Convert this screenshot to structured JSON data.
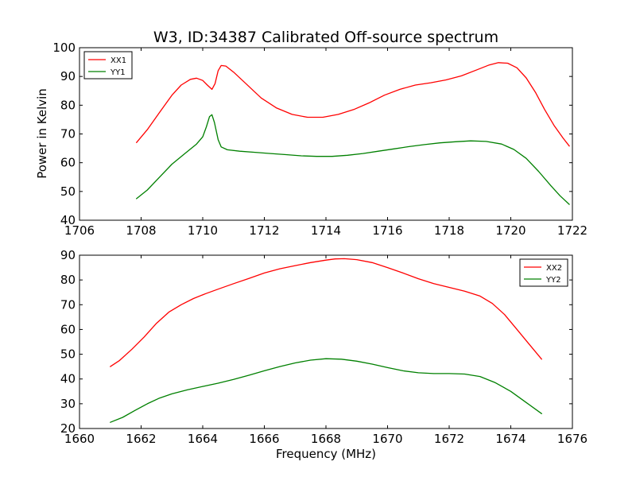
{
  "figure": {
    "title": "W3, ID:34387 Calibrated Off-source spectrum",
    "xlabel": "Frequency (MHz)",
    "ylabel": "Power in Kelvin"
  },
  "colors": {
    "red": "#ff0000",
    "green": "#008000"
  },
  "chart_data": [
    {
      "type": "line",
      "title": "W3, ID:34387 Calibrated Off-source spectrum",
      "xlabel": "",
      "ylabel": "Power in Kelvin",
      "xlim": [
        1706,
        1722
      ],
      "ylim": [
        40,
        100
      ],
      "xticks": [
        1706,
        1708,
        1710,
        1712,
        1714,
        1716,
        1718,
        1720,
        1722
      ],
      "yticks": [
        40,
        50,
        60,
        70,
        80,
        90,
        100
      ],
      "grid": false,
      "legend_position": "top-left",
      "series": [
        {
          "name": "XX1",
          "color": "#ff0000",
          "points": [
            [
              1707.85,
              67
            ],
            [
              1708.2,
              71.5
            ],
            [
              1708.6,
              77.5
            ],
            [
              1709.0,
              83.5
            ],
            [
              1709.3,
              87
            ],
            [
              1709.6,
              89
            ],
            [
              1709.8,
              89.4
            ],
            [
              1710.0,
              88.6
            ],
            [
              1710.15,
              87
            ],
            [
              1710.3,
              85.5
            ],
            [
              1710.4,
              87.5
            ],
            [
              1710.5,
              92
            ],
            [
              1710.6,
              93.8
            ],
            [
              1710.75,
              93.6
            ],
            [
              1711.0,
              91.5
            ],
            [
              1711.4,
              87.5
            ],
            [
              1711.9,
              82.5
            ],
            [
              1712.4,
              79
            ],
            [
              1712.9,
              76.8
            ],
            [
              1713.4,
              75.8
            ],
            [
              1713.9,
              75.8
            ],
            [
              1714.4,
              76.8
            ],
            [
              1714.9,
              78.5
            ],
            [
              1715.4,
              80.8
            ],
            [
              1715.9,
              83.5
            ],
            [
              1716.4,
              85.5
            ],
            [
              1716.9,
              87
            ],
            [
              1717.4,
              87.8
            ],
            [
              1717.9,
              88.8
            ],
            [
              1718.4,
              90.2
            ],
            [
              1718.9,
              92.3
            ],
            [
              1719.3,
              94
            ],
            [
              1719.6,
              94.8
            ],
            [
              1719.9,
              94.6
            ],
            [
              1720.2,
              93
            ],
            [
              1720.5,
              89.5
            ],
            [
              1720.8,
              84.5
            ],
            [
              1721.1,
              78.5
            ],
            [
              1721.4,
              73
            ],
            [
              1721.7,
              68.5
            ],
            [
              1721.9,
              65.8
            ]
          ]
        },
        {
          "name": "YY1",
          "color": "#008000",
          "points": [
            [
              1707.85,
              47.5
            ],
            [
              1708.2,
              50.5
            ],
            [
              1708.6,
              55
            ],
            [
              1709.0,
              59.5
            ],
            [
              1709.4,
              63
            ],
            [
              1709.8,
              66.5
            ],
            [
              1710.0,
              69
            ],
            [
              1710.12,
              72.5
            ],
            [
              1710.22,
              76
            ],
            [
              1710.3,
              76.7
            ],
            [
              1710.38,
              74
            ],
            [
              1710.5,
              68
            ],
            [
              1710.6,
              65.5
            ],
            [
              1710.8,
              64.5
            ],
            [
              1711.2,
              64
            ],
            [
              1711.7,
              63.6
            ],
            [
              1712.2,
              63.2
            ],
            [
              1712.7,
              62.8
            ],
            [
              1713.2,
              62.4
            ],
            [
              1713.7,
              62.2
            ],
            [
              1714.2,
              62.2
            ],
            [
              1714.7,
              62.6
            ],
            [
              1715.2,
              63.2
            ],
            [
              1715.7,
              64
            ],
            [
              1716.2,
              64.8
            ],
            [
              1716.7,
              65.6
            ],
            [
              1717.2,
              66.3
            ],
            [
              1717.7,
              66.9
            ],
            [
              1718.2,
              67.3
            ],
            [
              1718.7,
              67.6
            ],
            [
              1719.2,
              67.4
            ],
            [
              1719.7,
              66.5
            ],
            [
              1720.1,
              64.6
            ],
            [
              1720.5,
              61.5
            ],
            [
              1720.9,
              57
            ],
            [
              1721.3,
              52
            ],
            [
              1721.6,
              48.5
            ],
            [
              1721.9,
              45.5
            ]
          ]
        }
      ]
    },
    {
      "type": "line",
      "title": "",
      "xlabel": "Frequency (MHz)",
      "ylabel": "",
      "xlim": [
        1660,
        1676
      ],
      "ylim": [
        20,
        90
      ],
      "xticks": [
        1660,
        1662,
        1664,
        1666,
        1668,
        1670,
        1672,
        1674,
        1676
      ],
      "yticks": [
        20,
        30,
        40,
        50,
        60,
        70,
        80,
        90
      ],
      "grid": false,
      "legend_position": "top-right",
      "series": [
        {
          "name": "XX2",
          "color": "#ff0000",
          "points": [
            [
              1661.0,
              45
            ],
            [
              1661.3,
              47.5
            ],
            [
              1661.7,
              52
            ],
            [
              1662.1,
              57
            ],
            [
              1662.5,
              62.5
            ],
            [
              1662.9,
              67
            ],
            [
              1663.3,
              70
            ],
            [
              1663.7,
              72.5
            ],
            [
              1664.1,
              74.5
            ],
            [
              1664.5,
              76.3
            ],
            [
              1665.0,
              78.5
            ],
            [
              1665.5,
              80.6
            ],
            [
              1666.0,
              82.8
            ],
            [
              1666.5,
              84.5
            ],
            [
              1667.0,
              85.8
            ],
            [
              1667.5,
              87
            ],
            [
              1668.0,
              88
            ],
            [
              1668.3,
              88.5
            ],
            [
              1668.6,
              88.6
            ],
            [
              1669.0,
              88.2
            ],
            [
              1669.5,
              87
            ],
            [
              1670.0,
              85
            ],
            [
              1670.5,
              82.8
            ],
            [
              1671.0,
              80.5
            ],
            [
              1671.5,
              78.5
            ],
            [
              1672.0,
              77
            ],
            [
              1672.5,
              75.5
            ],
            [
              1673.0,
              73.5
            ],
            [
              1673.4,
              70.5
            ],
            [
              1673.8,
              66
            ],
            [
              1674.2,
              60
            ],
            [
              1674.6,
              54
            ],
            [
              1675.0,
              48
            ]
          ]
        },
        {
          "name": "YY2",
          "color": "#008000",
          "points": [
            [
              1661.0,
              22.5
            ],
            [
              1661.4,
              24.5
            ],
            [
              1661.8,
              27.3
            ],
            [
              1662.2,
              30
            ],
            [
              1662.6,
              32.3
            ],
            [
              1663.0,
              34
            ],
            [
              1663.5,
              35.6
            ],
            [
              1664.0,
              37
            ],
            [
              1664.5,
              38.3
            ],
            [
              1665.0,
              39.8
            ],
            [
              1665.5,
              41.5
            ],
            [
              1666.0,
              43.3
            ],
            [
              1666.5,
              45
            ],
            [
              1667.0,
              46.5
            ],
            [
              1667.5,
              47.6
            ],
            [
              1668.0,
              48.2
            ],
            [
              1668.5,
              48
            ],
            [
              1669.0,
              47.2
            ],
            [
              1669.5,
              46
            ],
            [
              1670.0,
              44.6
            ],
            [
              1670.5,
              43.3
            ],
            [
              1671.0,
              42.5
            ],
            [
              1671.5,
              42.2
            ],
            [
              1672.0,
              42.2
            ],
            [
              1672.5,
              42
            ],
            [
              1673.0,
              41
            ],
            [
              1673.5,
              38.5
            ],
            [
              1674.0,
              35
            ],
            [
              1674.5,
              30.5
            ],
            [
              1675.0,
              26
            ]
          ]
        }
      ]
    }
  ]
}
